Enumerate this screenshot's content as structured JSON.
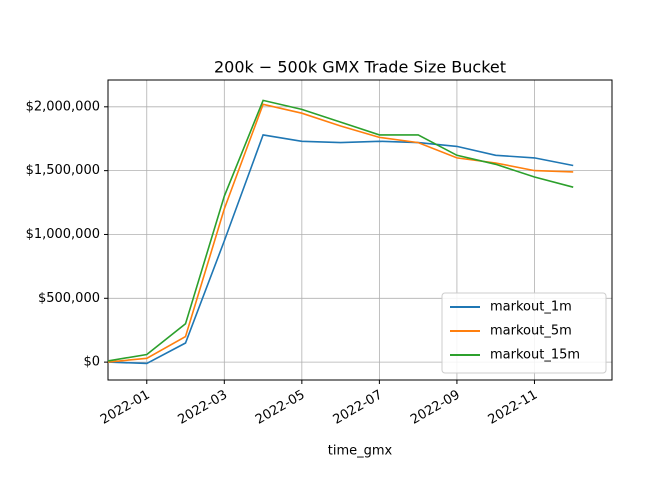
{
  "chart_data": {
    "type": "line",
    "title": "200k − 500k GMX Trade Size Bucket",
    "x_label": "time_gmx",
    "x": [
      "2021-12",
      "2022-01",
      "2022-02",
      "2022-03",
      "2022-04",
      "2022-05",
      "2022-06",
      "2022-07",
      "2022-08",
      "2022-09",
      "2022-10",
      "2022-11",
      "2022-12"
    ],
    "series": [
      {
        "name": "markout_1m",
        "color": "#1f77b4",
        "values": [
          0,
          -10000,
          150000,
          950000,
          1780000,
          1730000,
          1720000,
          1730000,
          1720000,
          1690000,
          1620000,
          1600000,
          1540000
        ]
      },
      {
        "name": "markout_5m",
        "color": "#ff7f0e",
        "values": [
          0,
          30000,
          200000,
          1200000,
          2020000,
          1950000,
          1850000,
          1760000,
          1720000,
          1600000,
          1560000,
          1500000,
          1490000
        ]
      },
      {
        "name": "markout_15m",
        "color": "#2ca02c",
        "values": [
          10000,
          60000,
          300000,
          1300000,
          2050000,
          1980000,
          1880000,
          1780000,
          1780000,
          1620000,
          1550000,
          1450000,
          1370000
        ]
      }
    ],
    "xlim": [
      "2021-12",
      "2023-01"
    ],
    "xticks": [
      "2022-01",
      "2022-03",
      "2022-05",
      "2022-07",
      "2022-09",
      "2022-11"
    ],
    "ylim": [
      -140000,
      2210000
    ],
    "yticks": [
      {
        "value": 0,
        "label": "$0"
      },
      {
        "value": 500000,
        "label": "$500,000"
      },
      {
        "value": 1000000,
        "label": "$1,000,000"
      },
      {
        "value": 1500000,
        "label": "$1,500,000"
      },
      {
        "value": 2000000,
        "label": "$2,000,000"
      }
    ],
    "grid": true,
    "legend": "lower right"
  }
}
